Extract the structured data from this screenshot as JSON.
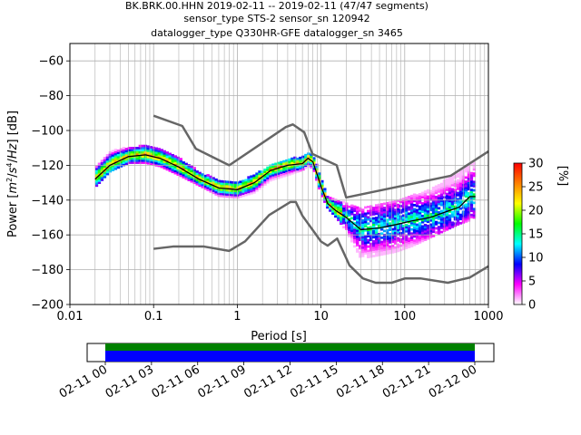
{
  "chart_data": {
    "type": "heatmap",
    "title_lines": [
      "BK.BRK.00.HHN   2019-02-11 -- 2019-02-11  (47/47 segments)",
      "sensor_type STS-2 sensor_sn 120942",
      "datalogger_type Q330HR-GFE datalogger_sn 3465"
    ],
    "xlabel": "Period [s]",
    "ylabel": "Power [m²/s⁴/Hz] [dB]",
    "ylabel_parts": [
      "Power [",
      "m",
      "2",
      "/",
      "s",
      "4",
      "/",
      "Hz",
      "] [dB]"
    ],
    "x_scale": "log",
    "xlim": [
      0.01,
      1000
    ],
    "ylim": [
      -200,
      -50
    ],
    "x_ticks": [
      0.01,
      0.1,
      1,
      10,
      100,
      1000
    ],
    "x_tick_labels": [
      "0.01",
      "0.1",
      "1",
      "10",
      "100",
      "1000"
    ],
    "y_ticks": [
      -60,
      -80,
      -100,
      -120,
      -140,
      -160,
      -180,
      -200
    ],
    "y_tick_labels": [
      "−60",
      "−80",
      "−100",
      "−120",
      "−140",
      "−160",
      "−180",
      "−200"
    ],
    "grid": true,
    "colorbar": {
      "label": "[%]",
      "range": [
        0,
        30
      ],
      "ticks": [
        0,
        5,
        10,
        15,
        20,
        25,
        30
      ],
      "tick_labels": [
        "0",
        "5",
        "10",
        "15",
        "20",
        "25",
        "30"
      ],
      "colors": [
        "#ffffff",
        "#ff00ff",
        "#0000ff",
        "#00ffff",
        "#00ff00",
        "#ffff00",
        "#ff8000",
        "#ff0000"
      ]
    },
    "noise_models": [
      {
        "name": "NHNM",
        "x": [
          0.1,
          0.22,
          0.32,
          0.8,
          3.8,
          4.6,
          6.3,
          7.9,
          15.4,
          20,
          354.8,
          1000
        ],
        "y": [
          -91.5,
          -97.4,
          -110.5,
          -120,
          -98,
          -96.5,
          -101,
          -113.5,
          -120,
          -138.5,
          -126,
          -112
        ]
      },
      {
        "name": "NLNM",
        "x": [
          0.1,
          0.17,
          0.4,
          0.8,
          1.24,
          2.4,
          4.3,
          5,
          6,
          10,
          12,
          15.6,
          21.9,
          31.6,
          45,
          70,
          101,
          154,
          328,
          600,
          1000
        ],
        "y": [
          -168,
          -166.7,
          -166.7,
          -169.2,
          -163.7,
          -148.6,
          -141.1,
          -141.1,
          -149,
          -163.8,
          -166.2,
          -162.1,
          -177.5,
          -185,
          -187.5,
          -187.5,
          -185,
          -185,
          -187.5,
          -184.5,
          -178
        ]
      }
    ],
    "mode_line": {
      "x": [
        0.02,
        0.03,
        0.05,
        0.08,
        0.12,
        0.2,
        0.35,
        0.6,
        1.0,
        1.6,
        2.5,
        4,
        6,
        7,
        8,
        10,
        12,
        15,
        20,
        30,
        50,
        80,
        120,
        200,
        300,
        450,
        600,
        700
      ],
      "y": [
        -128,
        -120,
        -115,
        -114,
        -116,
        -121,
        -128,
        -133,
        -134,
        -130,
        -123,
        -120,
        -119,
        -116,
        -118,
        -132,
        -142,
        -146,
        -150,
        -157,
        -156,
        -154,
        -152,
        -150,
        -147,
        -144,
        -138,
        -138
      ]
    },
    "percentile_band": {
      "x": [
        0.02,
        0.03,
        0.05,
        0.08,
        0.12,
        0.2,
        0.35,
        0.6,
        1.0,
        1.6,
        2.5,
        4,
        6,
        7,
        8,
        10,
        12,
        15,
        20,
        30,
        50,
        80,
        120,
        200,
        300,
        450,
        600,
        700
      ],
      "low": [
        -133,
        -124,
        -119,
        -119,
        -121,
        -126,
        -132,
        -138,
        -139,
        -136,
        -129,
        -126,
        -123,
        -121,
        -122,
        -137,
        -145,
        -150,
        -158,
        -174,
        -172,
        -170,
        -167,
        -162,
        -158,
        -154,
        -152,
        -150
      ],
      "high": [
        -122,
        -112,
        -110,
        -109,
        -111,
        -116,
        -124,
        -129,
        -130,
        -126,
        -120,
        -117,
        -115,
        -113,
        -114,
        -127,
        -138,
        -140,
        -142,
        -145,
        -143,
        -141,
        -138,
        -134,
        -129,
        -124,
        -120,
        -118
      ]
    },
    "timeline": {
      "tick_labels": [
        "02-11 00",
        "02-11 03",
        "02-11 06",
        "02-11 09",
        "02-11 12",
        "02-11 15",
        "02-11 18",
        "02-11 21",
        "02-12 00"
      ],
      "data_start": 0,
      "data_end": 1,
      "colors": [
        "#008000",
        "#0000ff"
      ]
    }
  }
}
